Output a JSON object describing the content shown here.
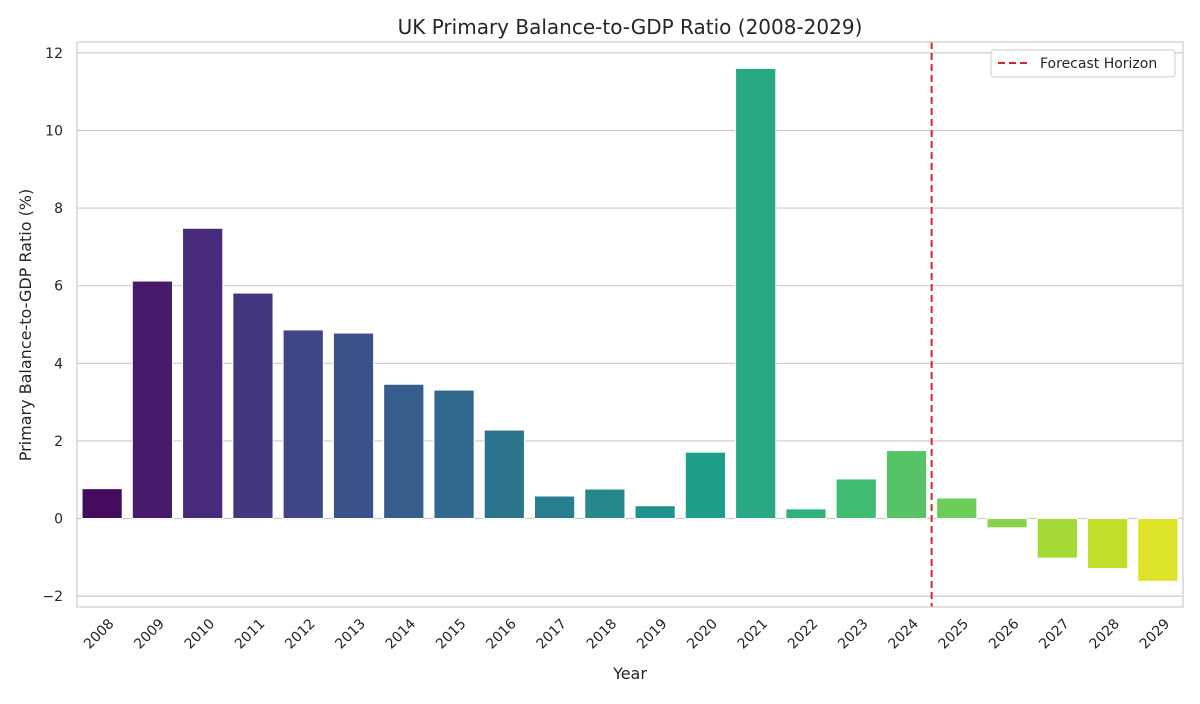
{
  "chart_data": {
    "type": "bar",
    "title": "UK Primary Balance-to-GDP Ratio (2008-2029)",
    "xlabel": "Year",
    "ylabel": "Primary Balance-to-GDP Ratio (%)",
    "categories": [
      "2008",
      "2009",
      "2010",
      "2011",
      "2012",
      "2013",
      "2014",
      "2015",
      "2016",
      "2017",
      "2018",
      "2019",
      "2020",
      "2021",
      "2022",
      "2023",
      "2024",
      "2025",
      "2026",
      "2027",
      "2028",
      "2029"
    ],
    "values": [
      0.77,
      6.12,
      7.48,
      5.81,
      4.86,
      4.78,
      3.46,
      3.31,
      2.28,
      0.58,
      0.76,
      0.33,
      1.71,
      11.6,
      0.25,
      1.02,
      1.75,
      0.53,
      -0.24,
      -1.02,
      -1.29,
      -1.62
    ],
    "ylim": [
      -2.28,
      12.28
    ],
    "yticks": [
      -2,
      0,
      2,
      4,
      6,
      8,
      10,
      12
    ],
    "ytick_labels": [
      "−2",
      "0",
      "2",
      "4",
      "6",
      "8",
      "10",
      "12"
    ],
    "grid": true,
    "colormap": "viridis",
    "forecast_line": {
      "label": "Forecast Horizon",
      "after_category": "2024",
      "color": "#d62728",
      "style": "dashed"
    },
    "legend": {
      "position": "top-right",
      "entries": [
        "Forecast Horizon"
      ]
    }
  }
}
